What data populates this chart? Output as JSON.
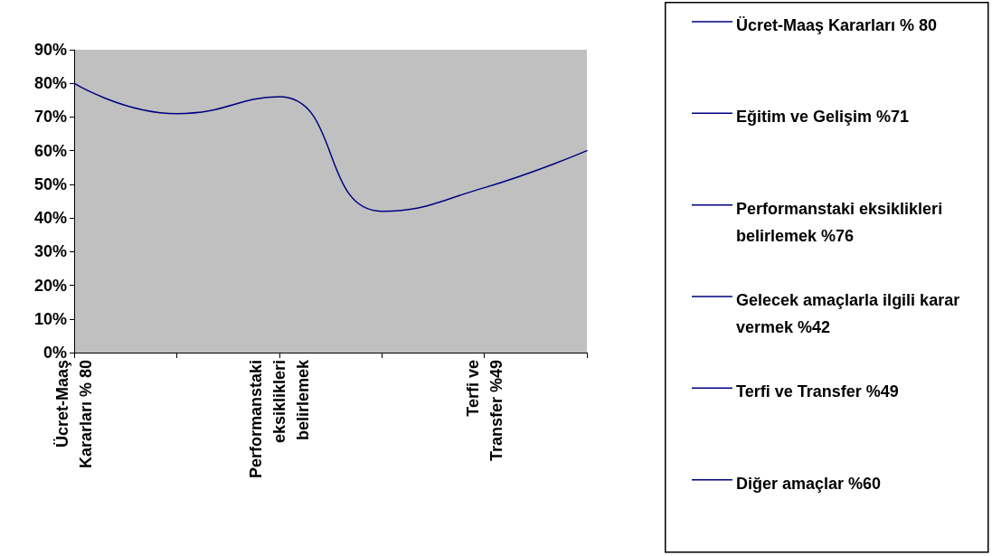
{
  "chart_data": {
    "type": "line",
    "categories": [
      "Ücret-Maaş\nKararları % 80",
      null,
      "Performanstaki\neksiklikleri\nbelirlemek",
      null,
      "Terfi ve\nTransfer %49",
      null
    ],
    "series": [
      {
        "color": "#000080",
        "values": [
          80,
          71,
          76,
          42,
          49,
          60
        ]
      }
    ],
    "ylim": [
      0,
      90
    ],
    "yticks": [
      {
        "value": 0,
        "label": "0%"
      },
      {
        "value": 10,
        "label": "10%"
      },
      {
        "value": 20,
        "label": "20%"
      },
      {
        "value": 30,
        "label": "30%"
      },
      {
        "value": 40,
        "label": "40%"
      },
      {
        "value": 50,
        "label": "50%"
      },
      {
        "value": 60,
        "label": "60%"
      },
      {
        "value": 70,
        "label": "70%"
      },
      {
        "value": 80,
        "label": "80%"
      },
      {
        "value": 90,
        "label": "90%"
      }
    ],
    "grid": false,
    "marker": "none",
    "line_style": "solid",
    "annotations": [
      "Ücret-Maaş Kararları % 80",
      "Eğitim ve Gelişim %71",
      "Performanstaki eksiklikleri belirlemek %76",
      "Gelecek amaçlarla ilgili karar vermek %42",
      "Terfi ve Transfer %49",
      "Diğer amaçlar %60"
    ]
  }
}
